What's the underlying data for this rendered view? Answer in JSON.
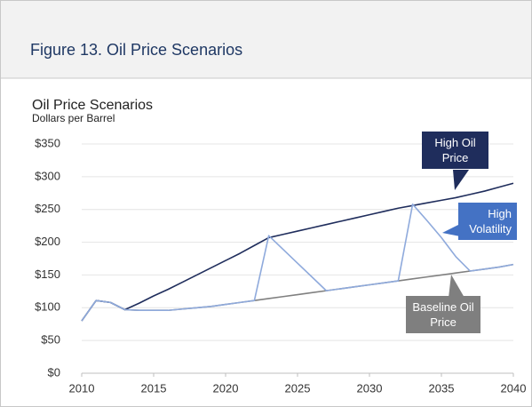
{
  "figure_title": "Figure 13. Oil Price Scenarios",
  "chart_data": {
    "type": "line",
    "title": "Oil Price Scenarios",
    "subtitle": "Dollars per Barrel",
    "x": [
      2010,
      2011,
      2012,
      2013,
      2014,
      2015,
      2016,
      2017,
      2018,
      2019,
      2020,
      2021,
      2022,
      2023,
      2024,
      2025,
      2026,
      2027,
      2028,
      2029,
      2030,
      2031,
      2032,
      2033,
      2034,
      2035,
      2036,
      2037,
      2038,
      2039,
      2040
    ],
    "series": [
      {
        "name": "Baseline Oil Price",
        "color": "#808080",
        "values": [
          80,
          111,
          108,
          97,
          96,
          96,
          96,
          98,
          100,
          102,
          105,
          108,
          111,
          114,
          117,
          120,
          123,
          126,
          129,
          132,
          135,
          138,
          141,
          144,
          147,
          150,
          153,
          156,
          159,
          162,
          166
        ]
      },
      {
        "name": "High Oil Price",
        "color": "#1f2d5c",
        "values": [
          80,
          111,
          108,
          97,
          107,
          118,
          128,
          139,
          150,
          161,
          172,
          183,
          195,
          207,
          212,
          217,
          222,
          227,
          232,
          237,
          242,
          247,
          252,
          256,
          260,
          264,
          268,
          273,
          278,
          284,
          290
        ]
      },
      {
        "name": "High Volatility",
        "color": "#8faadc",
        "values": [
          80,
          111,
          108,
          97,
          96,
          96,
          96,
          98,
          100,
          102,
          105,
          108,
          111,
          210,
          189,
          168,
          147,
          126,
          129,
          132,
          135,
          138,
          141,
          258,
          233,
          207,
          178,
          156,
          159,
          162,
          166
        ]
      }
    ],
    "xlim": [
      2010,
      2040
    ],
    "xticks": [
      2010,
      2015,
      2020,
      2025,
      2030,
      2035,
      2040
    ],
    "ylim": [
      0,
      350
    ],
    "yticks": [
      {
        "value": 0,
        "label": "$0"
      },
      {
        "value": 50,
        "label": "$50"
      },
      {
        "value": 100,
        "label": "$100"
      },
      {
        "value": 150,
        "label": "$150"
      },
      {
        "value": 200,
        "label": "$200"
      },
      {
        "value": 250,
        "label": "$250"
      },
      {
        "value": 300,
        "label": "$300"
      },
      {
        "value": 350,
        "label": "$350"
      }
    ],
    "grid": true
  }
}
